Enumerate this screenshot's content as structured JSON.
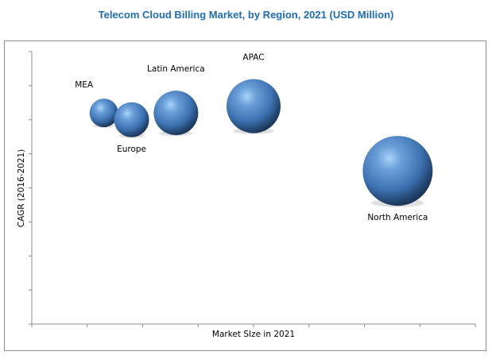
{
  "chart_data": {
    "type": "scatter",
    "subtype": "bubble",
    "title": "Telecom Cloud Billing Market, by Region, 2021 (USD Million)",
    "xlabel": "Market SIze in 2021",
    "ylabel": "CAGR (2016-2021)",
    "xlim": [
      0,
      8
    ],
    "ylim": [
      0,
      8
    ],
    "x_ticks": 8,
    "y_ticks": 8,
    "grid": false,
    "bubble_color": "#4a7fc0",
    "series": [
      {
        "name": "MEA",
        "x": 1.3,
        "y": 6.2,
        "size": 18,
        "label_pos": "above-left"
      },
      {
        "name": "Europe",
        "x": 1.8,
        "y": 6.0,
        "size": 22,
        "label_pos": "below"
      },
      {
        "name": "Latin America",
        "x": 2.6,
        "y": 6.2,
        "size": 28,
        "label_pos": "above"
      },
      {
        "name": "APAC",
        "x": 4.0,
        "y": 6.4,
        "size": 34,
        "label_pos": "above"
      },
      {
        "name": "North America",
        "x": 6.6,
        "y": 4.5,
        "size": 44,
        "label_pos": "below"
      }
    ]
  }
}
